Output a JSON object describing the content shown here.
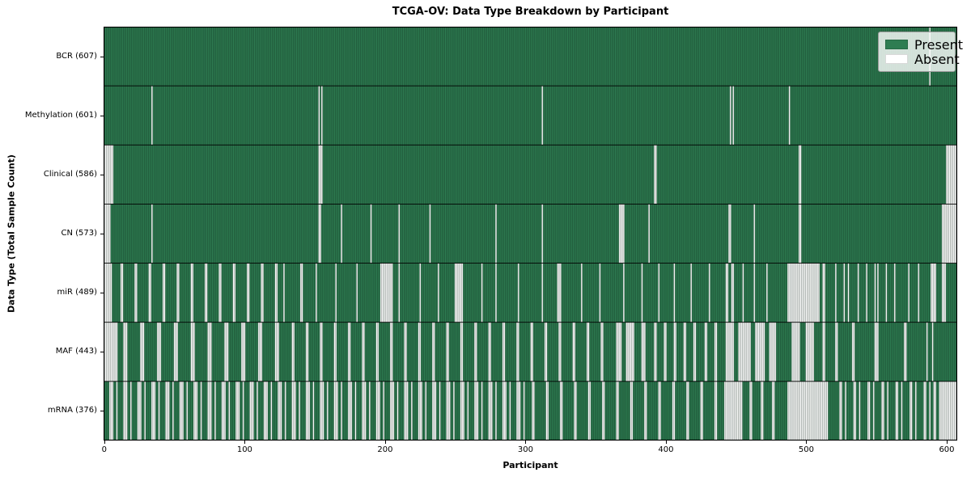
{
  "chart_data": {
    "type": "heatmap",
    "title": "TCGA-OV: Data Type Breakdown by Participant",
    "xlabel": "Participant",
    "ylabel": "Data Type (Total Sample Count)",
    "n_participants": 608,
    "x_ticks": [
      0,
      100,
      200,
      300,
      400,
      500,
      600
    ],
    "xlim": [
      0,
      607
    ],
    "grid": false,
    "legend_position": "upper right",
    "legend_items": [
      {
        "label": "Present",
        "color": "#2e7d52"
      },
      {
        "label": "Absent",
        "color": "#ffffff"
      }
    ],
    "colors": {
      "present": "#2e7d52",
      "absent": "#ffffff",
      "cell_edge": "rgba(8,28,18,0.45)",
      "row_separator": "#000000",
      "plot_border": "#000000"
    },
    "rows": [
      {
        "label": "BCR (607)",
        "name": "BCR",
        "present_count": 607,
        "absent_count": 1,
        "absent_ranges": [
          [
            588,
            588
          ]
        ]
      },
      {
        "label": "Methylation (601)",
        "name": "Methylation",
        "present_count": 601,
        "absent_count": 7,
        "absent_ranges": [
          [
            34,
            34
          ],
          [
            153,
            153
          ],
          [
            155,
            155
          ],
          [
            312,
            312
          ],
          [
            446,
            446
          ],
          [
            448,
            448
          ],
          [
            488,
            488
          ]
        ]
      },
      {
        "label": "Clinical (586)",
        "name": "Clinical",
        "present_count": 586,
        "absent_count": 22,
        "absent_ranges": [
          [
            0,
            6
          ],
          [
            153,
            155
          ],
          [
            392,
            393
          ],
          [
            495,
            496
          ],
          [
            600,
            607
          ]
        ]
      },
      {
        "label": "CN (573)",
        "name": "CN",
        "present_count": 573,
        "absent_count": 35,
        "absent_ranges": [
          [
            0,
            4
          ],
          [
            34,
            34
          ],
          [
            153,
            154
          ],
          [
            169,
            169
          ],
          [
            190,
            190
          ],
          [
            210,
            210
          ],
          [
            232,
            232
          ],
          [
            279,
            279
          ],
          [
            312,
            312
          ],
          [
            367,
            370
          ],
          [
            388,
            388
          ],
          [
            445,
            446
          ],
          [
            463,
            463
          ],
          [
            495,
            496
          ],
          [
            597,
            607
          ]
        ]
      },
      {
        "label": "miR (489)",
        "name": "miR",
        "present_count": 489,
        "absent_count": 119,
        "absent_ranges": [
          [
            0,
            5
          ],
          [
            12,
            13
          ],
          [
            22,
            23
          ],
          [
            32,
            33
          ],
          [
            42,
            43
          ],
          [
            52,
            53
          ],
          [
            62,
            63
          ],
          [
            72,
            73
          ],
          [
            82,
            83
          ],
          [
            92,
            93
          ],
          [
            102,
            103
          ],
          [
            112,
            113
          ],
          [
            122,
            123
          ],
          [
            128,
            128
          ],
          [
            140,
            141
          ],
          [
            151,
            151
          ],
          [
            165,
            165
          ],
          [
            180,
            180
          ],
          [
            197,
            205
          ],
          [
            210,
            210
          ],
          [
            225,
            225
          ],
          [
            238,
            238
          ],
          [
            250,
            255
          ],
          [
            269,
            269
          ],
          [
            279,
            279
          ],
          [
            295,
            295
          ],
          [
            312,
            312
          ],
          [
            323,
            325
          ],
          [
            340,
            340
          ],
          [
            353,
            353
          ],
          [
            370,
            370
          ],
          [
            383,
            383
          ],
          [
            395,
            395
          ],
          [
            406,
            406
          ],
          [
            418,
            418
          ],
          [
            431,
            431
          ],
          [
            443,
            444
          ],
          [
            447,
            448
          ],
          [
            455,
            455
          ],
          [
            463,
            463
          ],
          [
            472,
            472
          ],
          [
            487,
            509
          ],
          [
            512,
            513
          ],
          [
            521,
            521
          ],
          [
            527,
            527
          ],
          [
            530,
            530
          ],
          [
            537,
            537
          ],
          [
            543,
            543
          ],
          [
            549,
            549
          ],
          [
            551,
            551
          ],
          [
            557,
            557
          ],
          [
            563,
            563
          ],
          [
            573,
            573
          ],
          [
            580,
            580
          ],
          [
            589,
            592
          ],
          [
            597,
            599
          ]
        ]
      },
      {
        "label": "MAF (443)",
        "name": "MAF",
        "present_count": 443,
        "absent_count": 165,
        "absent_ranges": [
          [
            0,
            9
          ],
          [
            14,
            16
          ],
          [
            26,
            28
          ],
          [
            38,
            40
          ],
          [
            50,
            52
          ],
          [
            62,
            64
          ],
          [
            74,
            76
          ],
          [
            86,
            88
          ],
          [
            98,
            100
          ],
          [
            110,
            112
          ],
          [
            122,
            124
          ],
          [
            134,
            135
          ],
          [
            144,
            145
          ],
          [
            154,
            155
          ],
          [
            164,
            165
          ],
          [
            174,
            175
          ],
          [
            184,
            185
          ],
          [
            194,
            195
          ],
          [
            204,
            205
          ],
          [
            214,
            215
          ],
          [
            224,
            225
          ],
          [
            234,
            235
          ],
          [
            244,
            245
          ],
          [
            254,
            255
          ],
          [
            264,
            265
          ],
          [
            274,
            275
          ],
          [
            284,
            285
          ],
          [
            294,
            295
          ],
          [
            304,
            305
          ],
          [
            314,
            315
          ],
          [
            324,
            325
          ],
          [
            334,
            335
          ],
          [
            344,
            345
          ],
          [
            354,
            355
          ],
          [
            365,
            368
          ],
          [
            372,
            377
          ],
          [
            383,
            385
          ],
          [
            392,
            393
          ],
          [
            399,
            400
          ],
          [
            406,
            407
          ],
          [
            413,
            414
          ],
          [
            420,
            421
          ],
          [
            428,
            429
          ],
          [
            435,
            436
          ],
          [
            443,
            448
          ],
          [
            452,
            460
          ],
          [
            464,
            470
          ],
          [
            474,
            478
          ],
          [
            490,
            495
          ],
          [
            500,
            505
          ],
          [
            512,
            513
          ],
          [
            521,
            522
          ],
          [
            533,
            534
          ],
          [
            549,
            551
          ],
          [
            570,
            571
          ],
          [
            586,
            586
          ],
          [
            590,
            590
          ]
        ]
      },
      {
        "label": "mRNA (376)",
        "name": "mRNA",
        "present_count": 376,
        "absent_count": 232,
        "absent_ranges": [
          [
            4,
            6
          ],
          [
            9,
            9
          ],
          [
            14,
            16
          ],
          [
            19,
            19
          ],
          [
            24,
            26
          ],
          [
            29,
            29
          ],
          [
            34,
            36
          ],
          [
            39,
            39
          ],
          [
            44,
            46
          ],
          [
            49,
            49
          ],
          [
            54,
            56
          ],
          [
            59,
            59
          ],
          [
            64,
            66
          ],
          [
            69,
            69
          ],
          [
            74,
            76
          ],
          [
            79,
            79
          ],
          [
            84,
            86
          ],
          [
            89,
            89
          ],
          [
            94,
            96
          ],
          [
            99,
            99
          ],
          [
            104,
            106
          ],
          [
            109,
            109
          ],
          [
            114,
            116
          ],
          [
            119,
            119
          ],
          [
            124,
            126
          ],
          [
            129,
            129
          ],
          [
            134,
            136
          ],
          [
            139,
            139
          ],
          [
            144,
            146
          ],
          [
            149,
            149
          ],
          [
            154,
            156
          ],
          [
            159,
            159
          ],
          [
            164,
            166
          ],
          [
            169,
            169
          ],
          [
            174,
            176
          ],
          [
            179,
            179
          ],
          [
            184,
            186
          ],
          [
            189,
            189
          ],
          [
            194,
            196
          ],
          [
            199,
            199
          ],
          [
            204,
            206
          ],
          [
            209,
            209
          ],
          [
            214,
            216
          ],
          [
            219,
            219
          ],
          [
            224,
            226
          ],
          [
            229,
            229
          ],
          [
            234,
            236
          ],
          [
            239,
            239
          ],
          [
            244,
            246
          ],
          [
            249,
            249
          ],
          [
            254,
            256
          ],
          [
            259,
            259
          ],
          [
            264,
            266
          ],
          [
            269,
            269
          ],
          [
            274,
            276
          ],
          [
            279,
            279
          ],
          [
            284,
            286
          ],
          [
            289,
            289
          ],
          [
            294,
            296
          ],
          [
            299,
            299
          ],
          [
            305,
            306
          ],
          [
            315,
            316
          ],
          [
            325,
            326
          ],
          [
            335,
            336
          ],
          [
            345,
            346
          ],
          [
            355,
            356
          ],
          [
            365,
            366
          ],
          [
            375,
            376
          ],
          [
            385,
            386
          ],
          [
            395,
            396
          ],
          [
            405,
            406
          ],
          [
            415,
            416
          ],
          [
            425,
            426
          ],
          [
            435,
            436
          ],
          [
            442,
            454
          ],
          [
            460,
            461
          ],
          [
            468,
            469
          ],
          [
            476,
            477
          ],
          [
            487,
            515
          ],
          [
            524,
            525
          ],
          [
            528,
            528
          ],
          [
            534,
            535
          ],
          [
            538,
            538
          ],
          [
            544,
            545
          ],
          [
            548,
            548
          ],
          [
            554,
            555
          ],
          [
            558,
            558
          ],
          [
            564,
            565
          ],
          [
            568,
            568
          ],
          [
            574,
            575
          ],
          [
            578,
            578
          ],
          [
            584,
            585
          ],
          [
            588,
            588
          ],
          [
            591,
            592
          ],
          [
            595,
            607
          ]
        ]
      }
    ]
  }
}
